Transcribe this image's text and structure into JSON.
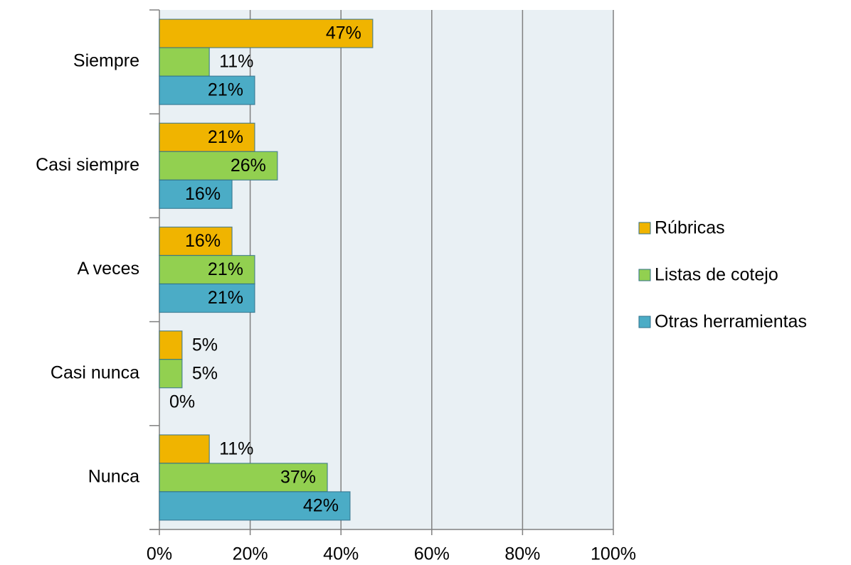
{
  "chart_data": {
    "type": "bar",
    "orientation": "horizontal",
    "categories": [
      "Siempre",
      "Casi siempre",
      "A veces",
      "Casi nunca",
      "Nunca"
    ],
    "series": [
      {
        "name": "Rúbricas",
        "color": "#f0b400",
        "values": [
          47,
          21,
          16,
          5,
          11
        ],
        "value_labels": [
          "47%",
          "21%",
          "16%",
          "5%",
          "11%"
        ]
      },
      {
        "name": "Listas de cotejo",
        "color": "#92d050",
        "values": [
          11,
          26,
          21,
          5,
          37
        ],
        "value_labels": [
          "11%",
          "26%",
          "21%",
          "5%",
          "37%"
        ]
      },
      {
        "name": "Otras herramientas",
        "color": "#4bacc6",
        "values": [
          21,
          16,
          21,
          0,
          42
        ],
        "value_labels": [
          "21%",
          "16%",
          "21%",
          "0%",
          "42%"
        ]
      }
    ],
    "xlim": [
      0,
      100
    ],
    "xticks": [
      {
        "value": 0,
        "label": "0%"
      },
      {
        "value": 20,
        "label": "20%"
      },
      {
        "value": 40,
        "label": "40%"
      },
      {
        "value": 60,
        "label": "60%"
      },
      {
        "value": 80,
        "label": "80%"
      },
      {
        "value": 100,
        "label": "100%"
      }
    ],
    "grid": true,
    "legend": "right"
  }
}
